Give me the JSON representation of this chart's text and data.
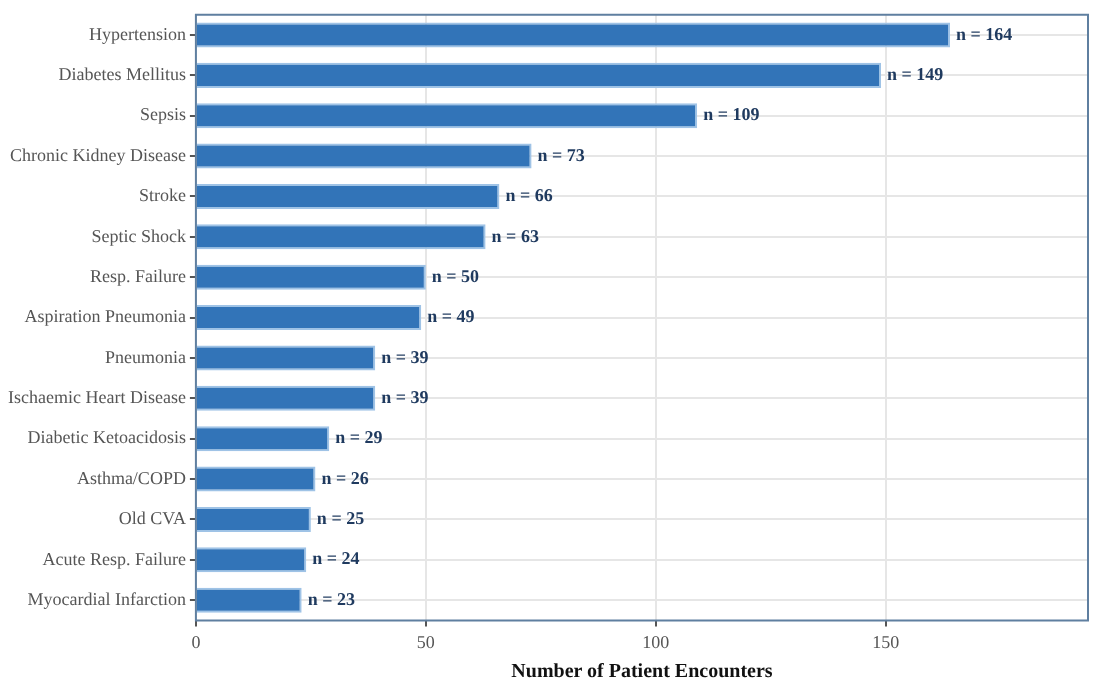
{
  "chart_data": {
    "type": "bar",
    "orientation": "horizontal",
    "xlabel": "Number of Patient Encounters",
    "categories": [
      "Hypertension",
      "Diabetes Mellitus",
      "Sepsis",
      "Chronic Kidney Disease",
      "Stroke",
      "Septic Shock",
      "Resp. Failure",
      "Aspiration Pneumonia",
      "Pneumonia",
      "Ischaemic Heart Disease",
      "Diabetic Ketoacidosis",
      "Asthma/COPD",
      "Old CVA",
      "Acute Resp. Failure",
      "Myocardial Infarction"
    ],
    "values": [
      164,
      149,
      109,
      73,
      66,
      63,
      50,
      49,
      39,
      39,
      29,
      26,
      25,
      24,
      23
    ],
    "value_labels": [
      "n = 164",
      "n = 149",
      "n = 109",
      "n = 73",
      "n = 66",
      "n = 63",
      "n = 50",
      "n = 49",
      "n = 39",
      "n = 39",
      "n = 29",
      "n = 26",
      "n = 25",
      "n = 24",
      "n = 23"
    ],
    "color": "#3274b8",
    "xlim": [
      0,
      194
    ],
    "xticks": [
      0,
      50,
      100,
      150
    ],
    "grid": true,
    "legend": false
  }
}
